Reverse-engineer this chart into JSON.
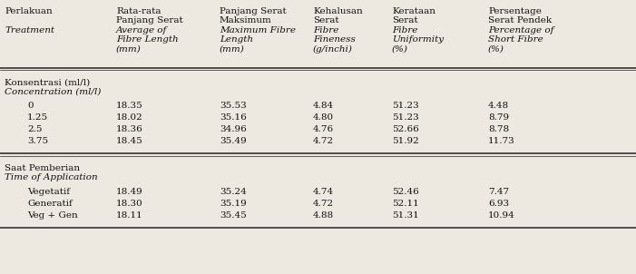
{
  "bg_color": "#ede8e0",
  "text_color": "#111111",
  "col_xs_inch": [
    0.05,
    1.28,
    2.42,
    3.45,
    4.32,
    5.38
  ],
  "header_row1": [
    "Perlakuan",
    "Rata-rata\nPanjang Serat",
    "Panjang Serat\nMaksimum",
    "Kehalusan\nSerat",
    "Kerataan\nSerat",
    "Persentage\nSerat Pendek"
  ],
  "header_row2": [
    "Treatment",
    "Average of\nFibre Length\n(mm)",
    "Maximum Fibre\nLength\n(mm)",
    "Fibre\nFineness\n(g/inchi)",
    "Fibre\nUniformity\n(%)",
    "Percentage of\nShort Fibre\n(%)"
  ],
  "header_row1_italic": [
    false,
    false,
    false,
    false,
    false,
    false
  ],
  "header_row2_italic": [
    true,
    true,
    true,
    true,
    true,
    true
  ],
  "section1_label_normal": "Konsentrasi (ml/l)",
  "section1_label_italic": "Concentration (ml/l)",
  "section1_indent": 0.25,
  "section1_rows": [
    [
      "0",
      "18.35",
      "35.53",
      "4.84",
      "51.23",
      "4.48"
    ],
    [
      "1.25",
      "18.02",
      "35.16",
      "4.80",
      "51.23",
      "8.79"
    ],
    [
      "2.5",
      "18.36",
      "34.96",
      "4.76",
      "52.66",
      "8.78"
    ],
    [
      "3.75",
      "18.45",
      "35.49",
      "4.72",
      "51.92",
      "11.73"
    ]
  ],
  "section2_label_normal": "Saat Pemberian",
  "section2_label_italic": "Time of Application",
  "section2_indent": 0.25,
  "section2_rows": [
    [
      "Vegetatif",
      "18.49",
      "35.24",
      "4.74",
      "52.46",
      "7.47"
    ],
    [
      "Generatif",
      "18.30",
      "35.19",
      "4.72",
      "52.11",
      "6.93"
    ],
    [
      "Veg + Gen",
      "18.11",
      "35.45",
      "4.88",
      "51.31",
      "10.94"
    ]
  ],
  "fontsize": 7.5,
  "line_color": "#222222",
  "fig_width": 7.01,
  "fig_height": 3.02
}
